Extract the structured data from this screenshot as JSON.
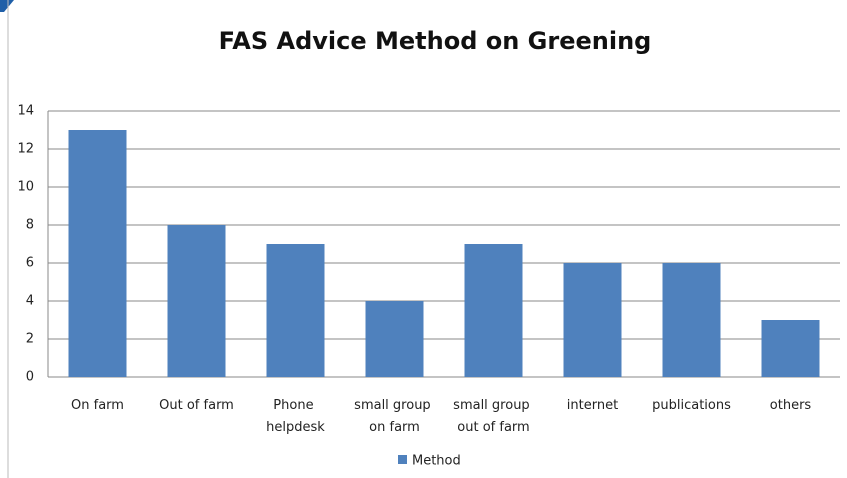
{
  "chart_data": {
    "type": "bar",
    "title": "FAS Advice Method on Greening",
    "categories": [
      "On farm",
      "Out of farm",
      "Phone helpdesk",
      "small group on farm",
      "small group out of farm",
      "internet",
      "publications",
      "others"
    ],
    "series": [
      {
        "name": "Method",
        "color": "#4f81bd",
        "values": [
          13,
          8,
          7,
          4,
          7,
          6,
          6,
          3
        ]
      }
    ],
    "ylim": [
      0,
      14
    ],
    "yticks": [
      0,
      2,
      4,
      6,
      8,
      10,
      12,
      14
    ],
    "grid": true,
    "legend": "bottom"
  }
}
